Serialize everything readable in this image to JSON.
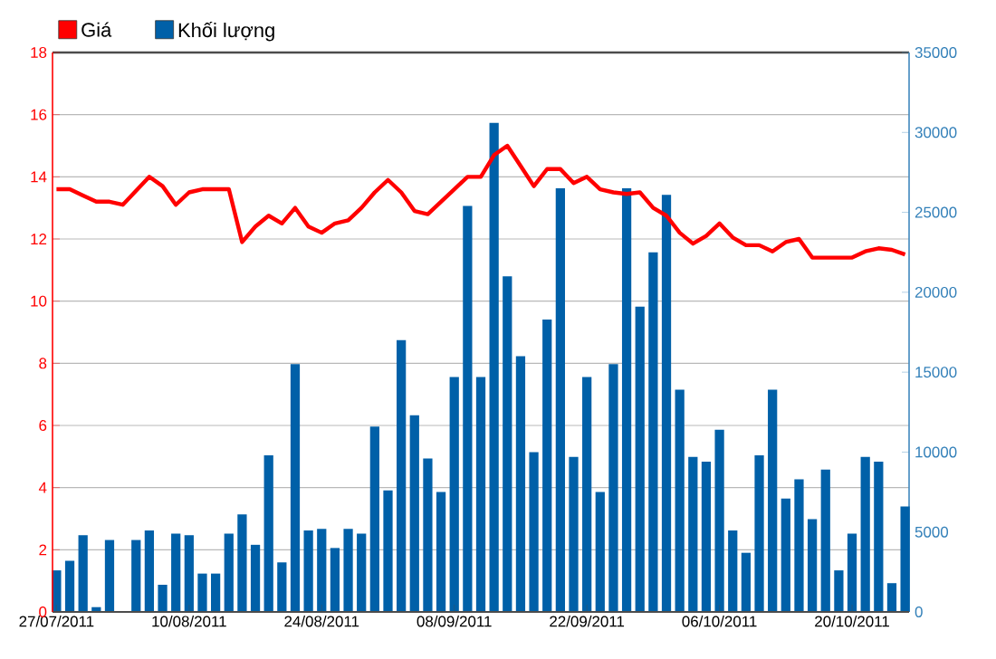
{
  "chart_data": {
    "type": "bar",
    "categories": [
      "27/07/2011",
      null,
      null,
      null,
      null,
      null,
      null,
      null,
      null,
      null,
      "10/08/2011",
      null,
      null,
      null,
      null,
      null,
      null,
      null,
      null,
      null,
      "24/08/2011",
      null,
      null,
      null,
      null,
      null,
      null,
      null,
      null,
      null,
      "08/09/2011",
      null,
      null,
      null,
      null,
      null,
      null,
      null,
      null,
      null,
      "22/09/2011",
      null,
      null,
      null,
      null,
      null,
      null,
      null,
      null,
      null,
      "06/10/2011",
      null,
      null,
      null,
      null,
      null,
      null,
      null,
      null,
      null,
      "20/10/2011",
      null,
      null,
      null,
      null
    ],
    "series": [
      {
        "name": "Giá",
        "type": "line",
        "color": "#ff0000",
        "values": [
          13.6,
          13.6,
          13.4,
          13.2,
          13.2,
          13.1,
          13.55,
          14.0,
          13.7,
          13.1,
          13.5,
          13.6,
          13.6,
          13.6,
          11.9,
          12.4,
          12.75,
          12.5,
          13.0,
          12.4,
          12.2,
          12.5,
          12.6,
          13.0,
          13.5,
          13.9,
          13.5,
          12.9,
          12.8,
          13.2,
          13.6,
          14.0,
          14.0,
          14.7,
          15.0,
          14.35,
          13.7,
          14.25,
          14.25,
          13.8,
          14.0,
          13.6,
          13.5,
          13.45,
          13.5,
          13.0,
          12.75,
          12.2,
          11.85,
          12.1,
          12.5,
          12.05,
          11.8,
          11.8,
          11.6,
          11.9,
          12.0,
          11.4,
          11.4,
          11.4,
          11.4,
          11.6,
          11.7,
          11.65,
          11.5
        ]
      },
      {
        "name": "Khối lượng",
        "axis": "y2",
        "color": "#0060a8",
        "values": [
          2600,
          3200,
          4800,
          300,
          4500,
          null,
          4500,
          5100,
          1700,
          4900,
          4800,
          2400,
          2400,
          4900,
          6100,
          4200,
          9800,
          3100,
          15500,
          5100,
          5200,
          4000,
          5200,
          4900,
          11600,
          7600,
          17000,
          12300,
          9600,
          7500,
          14700,
          25400,
          14700,
          30600,
          21000,
          16000,
          10000,
          18300,
          26500,
          9700,
          14700,
          7500,
          15500,
          26500,
          19100,
          22500,
          26100,
          13900,
          9700,
          9400,
          11400,
          5100,
          3700,
          9800,
          13900,
          7100,
          8300,
          5800,
          8900,
          2600,
          4900,
          9700,
          9400,
          1800,
          6600
        ]
      }
    ],
    "ylim": [
      0,
      18
    ],
    "yticks": [
      0,
      2,
      4,
      6,
      8,
      10,
      12,
      14,
      16,
      18
    ],
    "y2lim": [
      0,
      35000
    ],
    "y2ticks": [
      0,
      5000,
      10000,
      15000,
      20000,
      25000,
      30000,
      35000
    ],
    "grid": "y",
    "legend": "top left"
  }
}
